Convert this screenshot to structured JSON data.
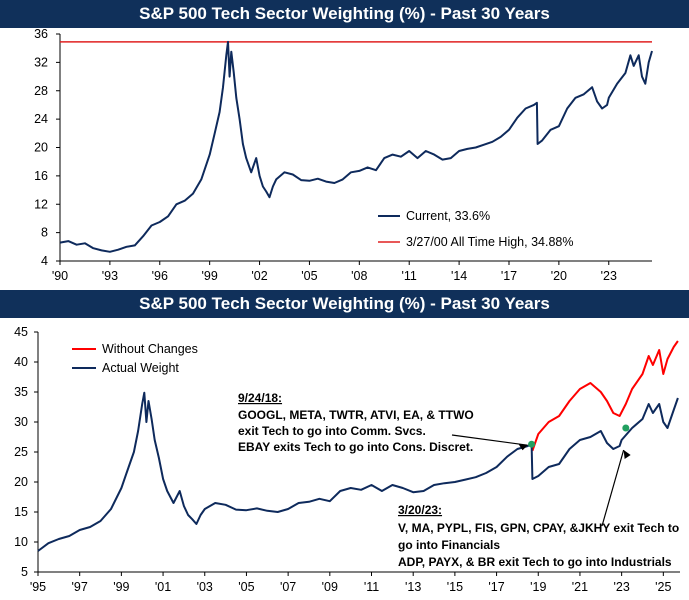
{
  "chart_data": [
    {
      "type": "line",
      "title": "S&P 500 Tech Sector Weighting (%) - Past 30 Years",
      "xlabel": "",
      "ylabel": "",
      "xlim": [
        1990,
        2025.6
      ],
      "ylim": [
        4,
        36
      ],
      "yticks": [
        4,
        8,
        12,
        16,
        20,
        24,
        28,
        32,
        36
      ],
      "xticks": [
        "'90",
        "'93",
        "'96",
        "'99",
        "'02",
        "'05",
        "'08",
        "'11",
        "'14",
        "'17",
        "'20",
        "'23"
      ],
      "xtick_years": [
        1990,
        1993,
        1996,
        1999,
        2002,
        2005,
        2008,
        2011,
        2014,
        2017,
        2020,
        2023
      ],
      "legend_position": "bottom-right",
      "series": [
        {
          "name": "Current, 33.6%",
          "color": "#0e2a5c",
          "x": [
            1990,
            1990.5,
            1991,
            1991.5,
            1992,
            1992.5,
            1993,
            1993.5,
            1994,
            1994.5,
            1995,
            1995.5,
            1996,
            1996.5,
            1997,
            1997.5,
            1998,
            1998.5,
            1999,
            1999.3,
            1999.6,
            1999.8,
            2000,
            2000.1,
            2000.2,
            2000.3,
            2000.45,
            2000.6,
            2000.8,
            2001,
            2001.2,
            2001.5,
            2001.8,
            2002,
            2002.2,
            2002.4,
            2002.6,
            2002.8,
            2003,
            2003.5,
            2004,
            2004.5,
            2005,
            2005.5,
            2006,
            2006.5,
            2007,
            2007.5,
            2008,
            2008.5,
            2009,
            2009.5,
            2010,
            2010.5,
            2011,
            2011.5,
            2012,
            2012.5,
            2013,
            2013.5,
            2014,
            2014.5,
            2015,
            2015.5,
            2016,
            2016.5,
            2017,
            2017.5,
            2018,
            2018.5,
            2018.68,
            2018.72,
            2019,
            2019.5,
            2020,
            2020.5,
            2021,
            2021.5,
            2022,
            2022.3,
            2022.6,
            2022.9,
            2023,
            2023.5,
            2024,
            2024.3,
            2024.5,
            2024.8,
            2025,
            2025.2,
            2025.4,
            2025.6
          ],
          "values": [
            6.6,
            6.8,
            6.3,
            6.5,
            5.8,
            5.5,
            5.3,
            5.6,
            6.0,
            6.2,
            7.5,
            9.0,
            9.5,
            10.3,
            12.0,
            12.5,
            13.5,
            15.5,
            19.0,
            22.0,
            25.0,
            28.5,
            33.0,
            34.88,
            30.0,
            33.5,
            30.5,
            27.0,
            24.0,
            20.5,
            18.5,
            16.5,
            18.5,
            16.0,
            14.5,
            13.8,
            13.0,
            14.5,
            15.5,
            16.5,
            16.2,
            15.4,
            15.3,
            15.6,
            15.2,
            15.0,
            15.5,
            16.5,
            16.7,
            17.2,
            16.8,
            18.5,
            19.0,
            18.7,
            19.5,
            18.5,
            19.5,
            19.0,
            18.3,
            18.5,
            19.5,
            19.8,
            20.0,
            20.4,
            20.8,
            21.5,
            22.5,
            24.2,
            25.5,
            26.0,
            26.3,
            20.5,
            21.0,
            22.5,
            23.0,
            25.5,
            27.0,
            27.5,
            28.5,
            26.5,
            25.5,
            26.0,
            27.0,
            29.0,
            30.5,
            33.0,
            31.5,
            33.0,
            30.0,
            29.0,
            32.0,
            33.6
          ]
        },
        {
          "name": "3/27/00 All Time High, 34.88%",
          "color": "#e02020",
          "x": [
            1990,
            2025.6
          ],
          "values": [
            34.88,
            34.88
          ]
        }
      ]
    },
    {
      "type": "line",
      "title": "S&P 500 Tech Sector Weighting (%) - Past 30 Years",
      "xlabel": "",
      "ylabel": "",
      "xlim": [
        1995,
        2025.8
      ],
      "ylim": [
        5,
        45
      ],
      "yticks": [
        5,
        10,
        15,
        20,
        25,
        30,
        35,
        40,
        45
      ],
      "xticks": [
        "'95",
        "'97",
        "'99",
        "'01",
        "'03",
        "'05",
        "'07",
        "'09",
        "'11",
        "'13",
        "'15",
        "'17",
        "'19",
        "'21",
        "'23",
        "'25"
      ],
      "xtick_years": [
        1995,
        1997,
        1999,
        2001,
        2003,
        2005,
        2007,
        2009,
        2011,
        2013,
        2015,
        2017,
        2019,
        2021,
        2023,
        2025
      ],
      "legend_position": "top-left",
      "series": [
        {
          "name": "Without Changes",
          "color": "#ff0000",
          "x": [
            2018.72,
            2019,
            2019.5,
            2020,
            2020.5,
            2021,
            2021.5,
            2022,
            2022.3,
            2022.6,
            2022.9,
            2023.2,
            2023.5,
            2024,
            2024.3,
            2024.5,
            2024.8,
            2025,
            2025.2,
            2025.5,
            2025.7
          ],
          "values": [
            25.2,
            28.0,
            30.0,
            31.0,
            33.5,
            35.5,
            36.5,
            35.0,
            33.5,
            31.5,
            31.0,
            33.0,
            35.5,
            38.0,
            41.0,
            39.5,
            42.0,
            38.0,
            40.5,
            42.5,
            43.5
          ]
        },
        {
          "name": "Actual Weight",
          "color": "#0e2a5c",
          "x": [
            1995,
            1995.5,
            1996,
            1996.5,
            1997,
            1997.5,
            1998,
            1998.5,
            1999,
            1999.3,
            1999.6,
            1999.8,
            2000,
            2000.1,
            2000.2,
            2000.3,
            2000.45,
            2000.6,
            2000.8,
            2001,
            2001.2,
            2001.5,
            2001.8,
            2002,
            2002.2,
            2002.4,
            2002.6,
            2002.8,
            2003,
            2003.5,
            2004,
            2004.5,
            2005,
            2005.5,
            2006,
            2006.5,
            2007,
            2007.5,
            2008,
            2008.5,
            2009,
            2009.5,
            2010,
            2010.5,
            2011,
            2011.5,
            2012,
            2012.5,
            2013,
            2013.5,
            2014,
            2014.5,
            2015,
            2015.5,
            2016,
            2016.5,
            2017,
            2017.5,
            2018,
            2018.5,
            2018.68,
            2018.72,
            2019,
            2019.5,
            2020,
            2020.5,
            2021,
            2021.5,
            2022,
            2022.3,
            2022.6,
            2022.9,
            2023,
            2023.5,
            2024,
            2024.3,
            2024.5,
            2024.8,
            2025,
            2025.2,
            2025.5,
            2025.7
          ],
          "values": [
            8.5,
            9.8,
            10.5,
            11.0,
            12.0,
            12.5,
            13.5,
            15.5,
            19.0,
            22.0,
            25.0,
            28.5,
            33.0,
            34.88,
            30.0,
            33.5,
            30.5,
            27.0,
            24.0,
            20.5,
            18.5,
            16.5,
            18.5,
            16.0,
            14.5,
            13.8,
            13.0,
            14.5,
            15.5,
            16.5,
            16.2,
            15.4,
            15.3,
            15.6,
            15.2,
            15.0,
            15.5,
            16.5,
            16.7,
            17.2,
            16.8,
            18.5,
            19.0,
            18.7,
            19.5,
            18.5,
            19.5,
            19.0,
            18.3,
            18.5,
            19.5,
            19.8,
            20.0,
            20.4,
            20.8,
            21.5,
            22.5,
            24.2,
            25.5,
            26.0,
            26.3,
            20.5,
            21.0,
            22.5,
            23.0,
            25.5,
            27.0,
            27.5,
            28.5,
            26.5,
            25.5,
            26.0,
            27.0,
            29.0,
            30.5,
            33.0,
            31.5,
            33.0,
            30.0,
            29.0,
            32.0,
            34.0
          ]
        }
      ],
      "markers": [
        {
          "name": "2018-change-marker",
          "x": 2018.68,
          "y": 26.3,
          "color": "#21a060"
        },
        {
          "name": "2023-change-marker",
          "x": 2023.2,
          "y": 29.0,
          "color": "#21a060"
        }
      ],
      "annotations": [
        {
          "heading": "9/24/18:",
          "lines": [
            "GOOGL, META, TWTR, ATVI, EA, & TTWO",
            "exit Tech to go into Comm. Svcs.",
            "EBAY exits Tech to go into Cons. Discret."
          ],
          "target_x": 2018.68,
          "target_y": 26.3
        },
        {
          "heading": "3/20/23:",
          "lines": [
            "V, MA, PYPL, FIS, GPN, CPAY, &JKHY exit Tech to",
            "go into Financials",
            "ADP, PAYX, & BR exit Tech to go into Industrials"
          ],
          "target_x": 2023.0,
          "target_y": 26.0
        }
      ]
    }
  ]
}
